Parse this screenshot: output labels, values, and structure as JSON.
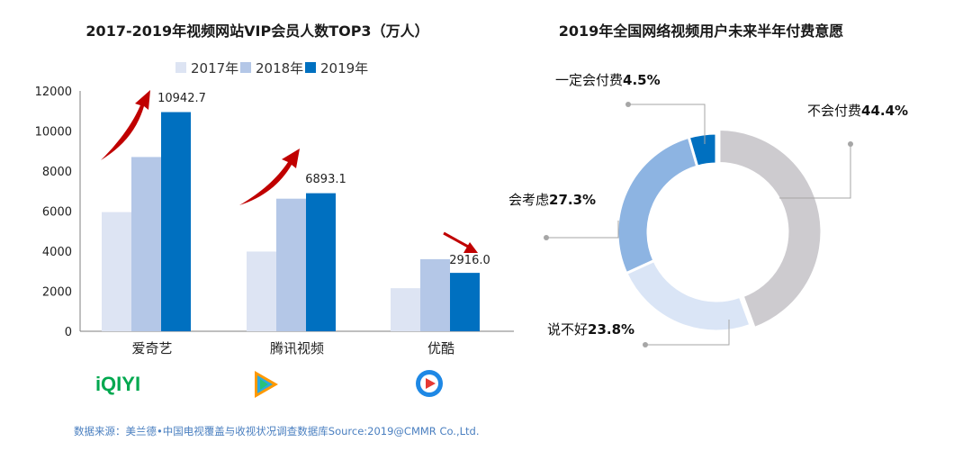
{
  "source_note": "数据来源：美兰德•中国电视覆盖与收视状况调查数据库Source:2019@CMMR Co.,Ltd.",
  "logos": {
    "iqiyi": "iQIYI",
    "youku_color": "#1e88e5"
  },
  "colors": {
    "y2017": "#dde4f3",
    "y2018": "#b4c7e7",
    "y2019": "#0070c0",
    "arrow": "#c00000",
    "pie_no": "#cdcbcf",
    "pie_maybe": "#8db4e2",
    "pie_not_sure": "#dae5f6",
    "pie_yes": "#0070c0"
  },
  "chart_data": [
    {
      "type": "bar",
      "title": "2017-2019年视频网站VIP会员人数TOP3（万人）",
      "categories": [
        "爱奇艺",
        "腾讯视频",
        "优酷"
      ],
      "series": [
        {
          "name": "2017年",
          "values": [
            5950,
            3980,
            2150
          ]
        },
        {
          "name": "2018年",
          "values": [
            8700,
            6620,
            3600
          ]
        },
        {
          "name": "2019年",
          "values": [
            10942.7,
            6893.1,
            2916.0
          ]
        }
      ],
      "data_labels": [
        "10942.7",
        "6893.1",
        "2916.0"
      ],
      "yticks": [
        "0",
        "2000",
        "4000",
        "6000",
        "8000",
        "10000",
        "12000"
      ],
      "ylim": [
        0,
        12000
      ],
      "legend": "top",
      "trend_arrows": [
        "up",
        "up",
        "down"
      ]
    },
    {
      "type": "pie",
      "title": "2019年全国网络视频用户未来半年付费意愿",
      "slices": [
        {
          "name": "不会付费",
          "pct": "44.4%",
          "value": 44.4
        },
        {
          "name": "说不好",
          "pct": "23.8%",
          "value": 23.8
        },
        {
          "name": "会考虑",
          "pct": "27.3%",
          "value": 27.3
        },
        {
          "name": "一定会付费",
          "pct": "4.5%",
          "value": 4.5
        }
      ]
    }
  ]
}
